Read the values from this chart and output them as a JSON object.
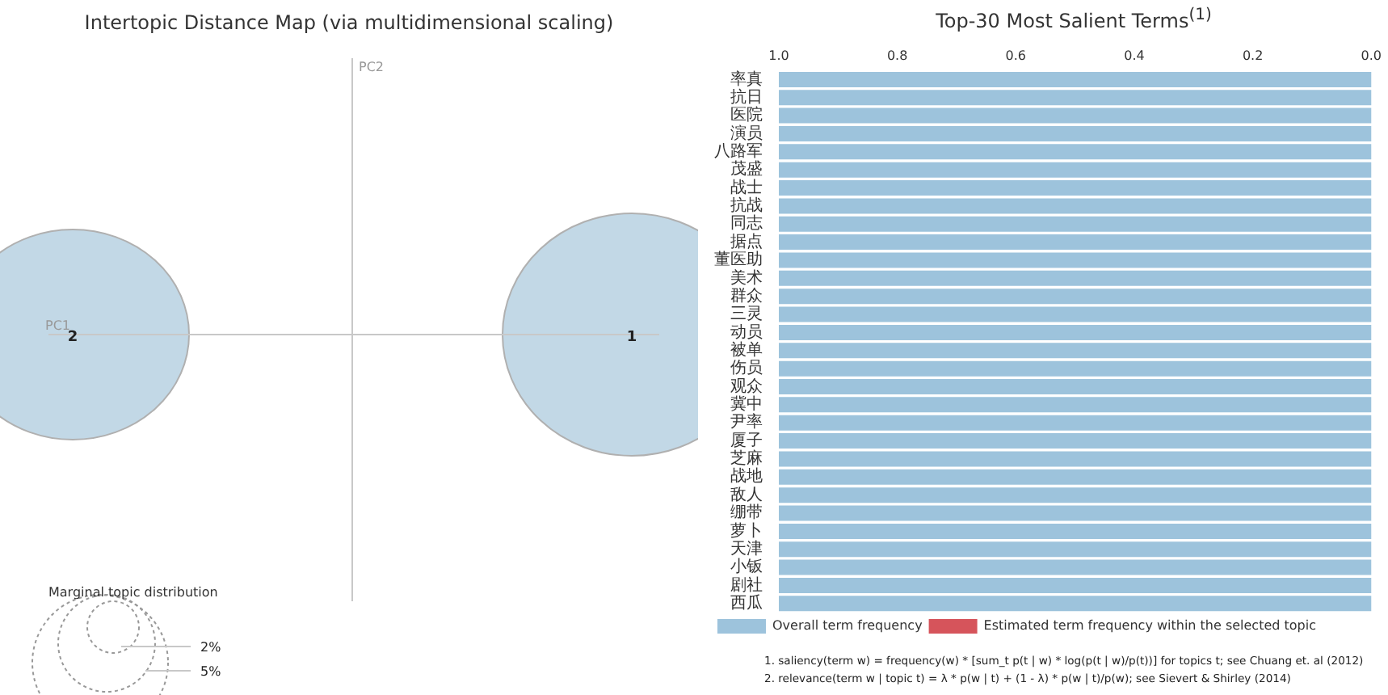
{
  "chart_data": [
    {
      "type": "other",
      "title": "Intertopic Distance Map (via multidimensional scaling)",
      "xlabel": "PC1",
      "ylabel": "PC2",
      "legend_title": "Marginal topic distribution",
      "annotations": [
        "1",
        "2",
        "2%",
        "5%"
      ]
    },
    {
      "type": "bar",
      "title": "Top-30 Most Salient Terms$^{(1)}$",
      "orientation": "horizontal",
      "legend": "bottom left",
      "xlim": [
        1,
        0
      ],
      "xticks": [
        {
          "value": 1,
          "label": "1.0"
        },
        0.8,
        0.6,
        0.4,
        0.2,
        {
          "value": 0,
          "label": "0.0"
        }
      ],
      "categories": [
        "率真",
        "抗日",
        "医院",
        "演员",
        "八路军",
        "茂盛",
        "战士",
        "抗战",
        "同志",
        "据点",
        "董医助",
        "美术",
        "群众",
        "三灵",
        "动员",
        "被单",
        "伤员",
        "观众",
        "冀中",
        "尹率",
        "厦子",
        "芝麻",
        "战地",
        "敌人",
        "绷带",
        "萝卜",
        "天津",
        "小钣",
        "剧社",
        "西瓜"
      ],
      "series": [
        {
          "name": "Overall term frequency",
          "color": "#9dc3dc",
          "values": [
            1,
            1,
            1,
            1,
            1,
            1,
            1,
            1,
            1,
            1,
            1,
            1,
            1,
            1,
            1,
            1,
            1,
            1,
            1,
            1,
            1,
            1,
            1,
            1,
            1,
            1,
            1,
            1,
            1,
            1
          ]
        },
        {
          "name": "Estimated term frequency within the selected topic",
          "color": "#d6545b",
          "values": [
            null,
            null,
            null,
            null,
            null,
            null,
            null,
            null,
            null,
            null,
            null,
            null,
            null,
            null,
            null,
            null,
            null,
            null,
            null,
            null,
            null,
            null,
            null,
            null,
            null,
            null,
            null,
            null,
            null,
            null
          ]
        }
      ],
      "annotations": [
        "1. saliency(term w) = frequency(w) * [sum_t p(t | w) * log(p(t | w)/p(t))] for topics t; see Chuang et. al (2012)",
        "2. relevance(term w | topic t) = λ * p(w | t) + (1 - λ) * p(w | t)/p(w); see Sievert & Shirley (2014)"
      ]
    }
  ]
}
